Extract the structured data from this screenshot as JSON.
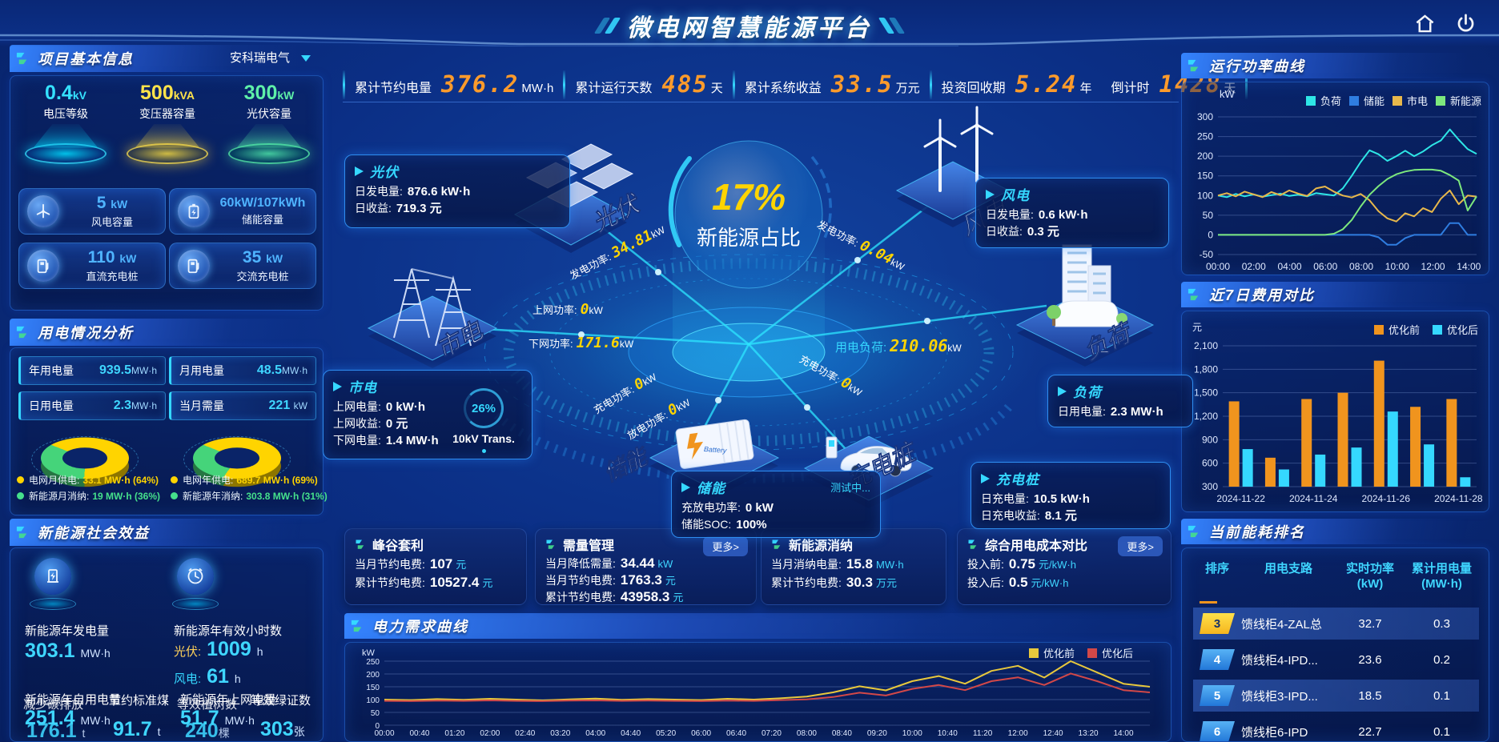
{
  "header": {
    "title": "微电网智慧能源平台"
  },
  "topbar": {
    "kpis": [
      {
        "label": "累计节约电量",
        "value": "376.2",
        "unit": "MW·h"
      },
      {
        "label": "累计运行天数",
        "value": "485",
        "unit": "天"
      },
      {
        "label": "累计系统收益",
        "value": "33.5",
        "unit": "万元"
      },
      {
        "label": "投资回收期",
        "value": "5.24",
        "unit": "年"
      },
      {
        "label": "倒计时",
        "value": "1428",
        "unit": "天"
      }
    ]
  },
  "project": {
    "title": "项目基本信息",
    "company": "安科瑞电气",
    "pedestals": [
      {
        "value": "0.4",
        "unit": "kV",
        "label": "电压等级"
      },
      {
        "value": "500",
        "unit": "kVA",
        "label": "变压器容量"
      },
      {
        "value": "300",
        "unit": "kW",
        "label": "光伏容量"
      }
    ],
    "capacities": [
      {
        "value": "5",
        "unit": "kW",
        "label": "风电容量"
      },
      {
        "value": "60kW/107kWh",
        "unit": "",
        "label": "储能容量"
      },
      {
        "value": "110",
        "unit": "kW",
        "label": "直流充电桩"
      },
      {
        "value": "35",
        "unit": "kW",
        "label": "交流充电桩"
      }
    ]
  },
  "usage": {
    "title": "用电情况分析",
    "stats": [
      {
        "label": "年用电量",
        "value": "939.5",
        "unit": "MW·h"
      },
      {
        "label": "月用电量",
        "value": "48.5",
        "unit": "MW·h"
      },
      {
        "label": "日用电量",
        "value": "2.3",
        "unit": "MW·h"
      },
      {
        "label": "当月需量",
        "value": "221",
        "unit": "kW"
      }
    ],
    "month_donut": {
      "grid_pct": 64,
      "renew_pct": 36
    },
    "year_donut": {
      "grid_pct": 69,
      "renew_pct": 31
    },
    "legends": [
      {
        "label": "电网月供电:",
        "value": "33.1 MW·h (64%)",
        "color": "#ffd400"
      },
      {
        "label": "新能源月消纳:",
        "value": "19 MW·h (36%)",
        "color": "#45e08c"
      },
      {
        "label": "电网年供电:",
        "value": "689.7 MW·h (69%)",
        "color": "#ffd400"
      },
      {
        "label": "新能源年消纳:",
        "value": "303.8 MW·h (31%)",
        "color": "#45e08c"
      }
    ]
  },
  "benefit": {
    "title": "新能源社会效益",
    "gen_label": "新能源年发电量",
    "gen_value": "303.1",
    "gen_unit": "MW·h",
    "hours_label": "新能源年有效小时数",
    "pv_label": "光伏:",
    "pv_value": "1009",
    "pv_unit": "h",
    "wind_label": "风电:",
    "wind_value": "61",
    "wind_unit": "h",
    "self_label": "新能源年自用电量",
    "self_value": "251.4",
    "self_unit": "MW·h",
    "co2_label": "减少碳排放",
    "co2_value": "176.1",
    "co2_unit": "t",
    "coal_label": "节约标准煤",
    "coal_value": "91.7",
    "coal_unit": "t",
    "export_label": "新能源年上网电量",
    "export_value": "51.7",
    "export_unit": "MW·h",
    "tree_label": "等效植树数",
    "tree_value": "240",
    "tree_unit": "棵",
    "cert_label": "等效绿证数",
    "cert_value": "303",
    "cert_unit": "张"
  },
  "center": {
    "percent": "17%",
    "percent_label": "新能源占比",
    "nodes": {
      "pv": "光伏",
      "wind": "风电",
      "grid": "市电",
      "storage": "储能",
      "charger": "充电桩",
      "load": "负荷"
    },
    "pv_box": {
      "title": "光伏",
      "r1_label": "日发电量:",
      "r1_value": "876.6 kW·h",
      "r2_label": "日收益:",
      "r2_value": "719.3 元"
    },
    "wind_box": {
      "title": "风电",
      "r1_label": "日发电量:",
      "r1_value": "0.6 kW·h",
      "r2_label": "日收益:",
      "r2_value": "0.3 元"
    },
    "grid_box": {
      "title": "市电",
      "r1_label": "上网电量:",
      "r1_value": "0 kW·h",
      "r2_label": "上网收益:",
      "r2_value": "0 元",
      "r3_label": "下网电量:",
      "r3_value": "1.4 MW·h",
      "trans_pct": "26%",
      "trans_label": "10kV Trans."
    },
    "storage_box": {
      "title": "储能",
      "status": "测试中...",
      "r1_label": "充放电功率:",
      "r1_value": "0 kW",
      "r2_label": "储能SOC:",
      "r2_value": "100%"
    },
    "load_box": {
      "title": "负荷",
      "r1_label": "日用电量:",
      "r1_value": "2.3 MW·h"
    },
    "charger_box": {
      "title": "充电桩",
      "r1_label": "日充电量:",
      "r1_value": "10.5 kW·h",
      "r2_label": "日充电收益:",
      "r2_value": "8.1 元"
    },
    "flows": {
      "pv_gen": {
        "label": "发电功率:",
        "value": "34.81",
        "unit": "kW"
      },
      "to_grid": {
        "label": "上网功率:",
        "value": "0",
        "unit": "kW"
      },
      "from_grid": {
        "label": "下网功率:",
        "value": "171.6",
        "unit": "kW"
      },
      "wind_gen": {
        "label": "发电功率:",
        "value": "0.04",
        "unit": "kW"
      },
      "load_power": {
        "label": "用电负荷:",
        "value": "210.06",
        "unit": "kW"
      },
      "storage_charge": {
        "label": "充电功率:",
        "value": "0",
        "unit": "kW"
      },
      "storage_discharge": {
        "label": "放电功率:",
        "value": "0",
        "unit": "kW"
      },
      "charger_power": {
        "label": "充电功率:",
        "value": "0",
        "unit": "kW"
      }
    }
  },
  "cards": [
    {
      "title": "峰谷套利",
      "rows": [
        {
          "label": "当月节约电费:",
          "value": "107",
          "unit": "元"
        },
        {
          "label": "累计节约电费:",
          "value": "10527.4",
          "unit": "元"
        }
      ]
    },
    {
      "title": "需量管理",
      "more": "更多>",
      "rows": [
        {
          "label": "当月降低需量:",
          "value": "34.44",
          "unit": "kW"
        },
        {
          "label": "当月节约电费:",
          "value": "1763.3",
          "unit": "元"
        },
        {
          "label": "累计节约电费:",
          "value": "43958.3",
          "unit": "元"
        }
      ]
    },
    {
      "title": "新能源消纳",
      "rows": [
        {
          "label": "当月消纳电量:",
          "value": "15.8",
          "unit": "MW·h"
        },
        {
          "label": "累计节约电费:",
          "value": "30.3",
          "unit": "万元"
        }
      ]
    },
    {
      "title": "综合用电成本对比",
      "more": "更多>",
      "rows": [
        {
          "label": "投入前:",
          "value": "0.75",
          "unit": "元/kW·h"
        },
        {
          "label": "投入后:",
          "value": "0.5",
          "unit": "元/kW·h"
        }
      ]
    }
  ],
  "chart_data": {
    "power_curve": {
      "type": "line",
      "title": "运行功率曲线",
      "unit": "kW",
      "ymin": -50,
      "ymax": 300,
      "ystep": 50,
      "xlabels": [
        "00:00",
        "02:00",
        "04:00",
        "06:00",
        "08:00",
        "10:00",
        "12:00",
        "14:00"
      ],
      "series": [
        {
          "name": "负荷",
          "color": "#2ee6e6",
          "values": [
            100,
            96,
            104,
            98,
            103,
            97,
            101,
            105,
            99,
            102,
            98,
            106,
            103,
            100,
            118,
            150,
            185,
            215,
            205,
            188,
            200,
            214,
            200,
            212,
            228,
            240,
            268,
            242,
            218,
            206
          ]
        },
        {
          "name": "储能",
          "color": "#2f7de0",
          "values": [
            0,
            0,
            0,
            0,
            0,
            0,
            0,
            0,
            0,
            0,
            0,
            0,
            0,
            0,
            0,
            0,
            0,
            0,
            -6,
            -25,
            -25,
            -8,
            0,
            0,
            0,
            0,
            30,
            30,
            0,
            0
          ]
        },
        {
          "name": "市电",
          "color": "#e8b84b",
          "values": [
            100,
            106,
            98,
            110,
            103,
            96,
            109,
            101,
            113,
            105,
            99,
            118,
            123,
            110,
            100,
            95,
            104,
            88,
            60,
            42,
            34,
            55,
            47,
            68,
            58,
            92,
            113,
            78,
            100,
            97
          ]
        },
        {
          "name": "新能源",
          "color": "#7de87d",
          "values": [
            0,
            0,
            0,
            0,
            0,
            0,
            0,
            0,
            0,
            0,
            0,
            0,
            0,
            3,
            14,
            38,
            72,
            102,
            124,
            142,
            154,
            161,
            165,
            166,
            166,
            163,
            152,
            138,
            62,
            98
          ]
        }
      ]
    },
    "cost_compare": {
      "type": "bar",
      "title": "近7日费用对比",
      "unit": "元",
      "ymin": 300,
      "ymax": 2100,
      "ystep": 300,
      "categories": [
        "2024-11-22",
        "2024-11-23",
        "2024-11-24",
        "2024-11-25",
        "2024-11-26",
        "2024-11-27",
        "2024-11-28"
      ],
      "xlabels": [
        "2024-11-22",
        "2024-11-24",
        "2024-11-26",
        "2024-11-28"
      ],
      "series": [
        {
          "name": "优化前",
          "color": "#f0941e",
          "values": [
            1390,
            670,
            1420,
            1500,
            1910,
            1320,
            1420
          ]
        },
        {
          "name": "优化后",
          "color": "#35d8ff",
          "values": [
            780,
            520,
            710,
            800,
            1260,
            840,
            420
          ]
        }
      ]
    },
    "demand_curve": {
      "type": "line",
      "title": "电力需求曲线",
      "unit": "kW",
      "ymin": 0,
      "ymax": 250,
      "ystep": 50,
      "xlabels": [
        "00:00",
        "00:40",
        "01:20",
        "02:00",
        "02:40",
        "03:20",
        "04:00",
        "04:40",
        "05:20",
        "06:00",
        "06:40",
        "07:20",
        "08:00",
        "08:40",
        "09:20",
        "10:00",
        "10:40",
        "11:20",
        "12:00",
        "12:40",
        "13:20",
        "14:00"
      ],
      "series": [
        {
          "name": "优化前",
          "color": "#e8c83c",
          "values": [
            100,
            98,
            102,
            99,
            103,
            100,
            97,
            101,
            104,
            99,
            102,
            100,
            98,
            103,
            100,
            105,
            112,
            128,
            152,
            136,
            172,
            192,
            162,
            212,
            232,
            186,
            250,
            206,
            162,
            150
          ]
        },
        {
          "name": "优化后",
          "color": "#d24848",
          "values": [
            95,
            94,
            96,
            95,
            97,
            95,
            94,
            96,
            97,
            95,
            96,
            95,
            94,
            96,
            95,
            98,
            101,
            110,
            127,
            116,
            142,
            157,
            137,
            172,
            187,
            157,
            202,
            172,
            137,
            128
          ]
        }
      ]
    }
  },
  "ranking": {
    "title": "当前能耗排名",
    "columns": [
      {
        "l1": "排序",
        "l2": ""
      },
      {
        "l1": "用电支路",
        "l2": ""
      },
      {
        "l1": "实时功率",
        "l2": "(kW)"
      },
      {
        "l1": "累计用电量",
        "l2": "(MW·h)"
      }
    ],
    "rows": [
      {
        "rank": "3",
        "branch": "馈线柜4-ZAL总",
        "power": "32.7",
        "energy": "0.3"
      },
      {
        "rank": "4",
        "branch": "馈线柜4-IPD...",
        "power": "23.6",
        "energy": "0.2"
      },
      {
        "rank": "5",
        "branch": "馈线柜3-IPD...",
        "power": "18.5",
        "energy": "0.1"
      },
      {
        "rank": "6",
        "branch": "馈线柜6-IPD",
        "power": "22.7",
        "energy": "0.1"
      }
    ]
  },
  "icons": {
    "home": "home-icon",
    "power": "power-icon",
    "panel_corner": "corner-flag-icon",
    "dropdown": "chevron-down-icon",
    "wind": "wind-turbine-icon",
    "battery": "battery-icon",
    "dc_charger": "dc-charger-icon",
    "ac_charger": "ac-charger-icon",
    "generator": "generator-icon",
    "clock": "clock-icon",
    "arrow": "arrow-right-icon"
  },
  "colors": {
    "accent": "#35d8ff",
    "number": "#ff9b2b",
    "value": "#3fd6ff",
    "yellow": "#ffd400",
    "green": "#45e08c"
  }
}
